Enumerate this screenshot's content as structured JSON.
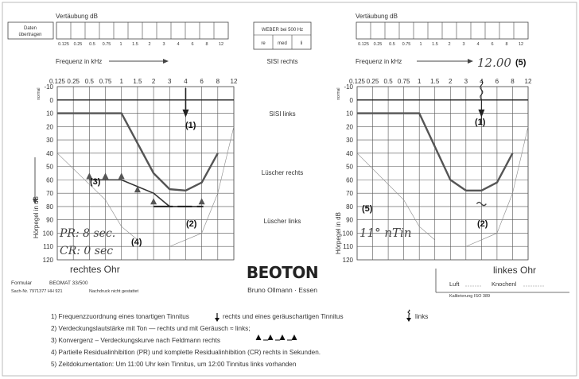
{
  "left": {
    "vertaeubung_label": "Vertäubung dB",
    "daten_btn": [
      "Daten",
      "übertragen"
    ],
    "mask_freqs": [
      "0.125",
      "0.25",
      "0.5",
      "0.75",
      "1",
      "1.5",
      "2",
      "3",
      "4",
      "6",
      "8",
      "12"
    ],
    "freq_label": "Frequenz in kHz",
    "freq_ticks": [
      "0.125",
      "0.25",
      "0.5",
      "0.75",
      "1",
      "1.5",
      "2",
      "3",
      "4",
      "6",
      "8",
      "12"
    ],
    "normal_label": "normal",
    "db_ticks": [
      "-10",
      "0",
      "10",
      "20",
      "30",
      "40",
      "50",
      "60",
      "70",
      "80",
      "90",
      "100",
      "110",
      "120"
    ],
    "y_axis_label": "Hörpegel in dB",
    "ear_label": "rechtes Ohr",
    "marker_1": "(1)",
    "marker_2": "(2)",
    "marker_3": "(3)",
    "marker_4": "(4)",
    "pr_text": "PR: 8 sec.",
    "cr_text": "CR: 0 sec",
    "formular_label": "Formular",
    "formular_value": "BEOMAT 33/500",
    "sach_nr": "Sach-Nr. 7971377 HH 921",
    "nachdruck": "Nachdruck nicht gestattet"
  },
  "middle": {
    "weber_title": "WEBER bei 500 Hz",
    "weber_cells": [
      "re",
      "med",
      "li"
    ],
    "sisi_rechts": "SISI rechts",
    "sisi_links": "SISI links",
    "luescher_rechts": "Lüscher rechts",
    "luescher_links": "Lüscher links",
    "col_khz": "kHz",
    "col_pct": "%",
    "col_db": "dB",
    "brand_logo": "BEOTON",
    "brand_text": "Bruno Ollmann · Essen"
  },
  "right": {
    "vertaeubung_label": "Vertäubung dB",
    "mask_freqs": [
      "0.125",
      "0.25",
      "0.5",
      "0.75",
      "1",
      "1.5",
      "2",
      "3",
      "4",
      "6",
      "8",
      "12"
    ],
    "freq_label": "Frequenz in kHz",
    "time_hand": "12.00",
    "marker_5_top": "(5)",
    "freq_ticks": [
      "0.125",
      "0.25",
      "0.5",
      "0.75",
      "1",
      "1.5",
      "2",
      "3",
      "4",
      "6",
      "8",
      "12"
    ],
    "normal_label": "normal",
    "db_ticks": [
      "-10",
      "0",
      "10",
      "20",
      "30",
      "40",
      "50",
      "60",
      "70",
      "80",
      "90",
      "100",
      "110",
      "120"
    ],
    "y_axis_label": "Hörpegel in dB",
    "marker_1": "(1)",
    "marker_2": "(2)",
    "marker_5": "(5)",
    "time_hand_2": "11° nTin",
    "ear_label": "linkes Ohr",
    "luft_label": "Luft",
    "knochen_label": "Knochenl",
    "kalibrierung": "Kalibrierung ISO 389"
  },
  "legend": {
    "line1a": "1) Frequenzzuordnung eines tonartigen Tinnitus",
    "line1b": "rechts und eines geräuschartigen Tinnitus",
    "line1c": "links",
    "line2": "2) Verdeckungslautstärke mit Ton — rechts und mit Geräusch ≈ links;",
    "line3": "3) Konvergenz – Verdeckungskurve nach Feldmann rechts",
    "line4": "4) Partielle Residualinhibition (PR) und komplette Residualinhibition (CR) rechts in Sekunden.",
    "line5": "5) Zeitdokumentation: Um 11:00 Uhr kein Tinnitus, um 12:00 Tinnitus links vorhanden"
  },
  "audiogram": {
    "freq_positions": [
      "0.125",
      "0.25",
      "0.5",
      "0.75",
      "1",
      "1.5",
      "2",
      "3",
      "4",
      "6",
      "8",
      "12"
    ],
    "db_range": [
      -10,
      120
    ],
    "right_ear_threshold": [
      {
        "f": "0.125",
        "db": 10
      },
      {
        "f": "1",
        "db": 10
      },
      {
        "f": "2",
        "db": 55
      },
      {
        "f": "3",
        "db": 67
      },
      {
        "f": "4",
        "db": 68
      },
      {
        "f": "6",
        "db": 62
      },
      {
        "f": "8",
        "db": 40
      }
    ],
    "right_ear_masking": [
      {
        "f": "0.5",
        "db": 60
      },
      {
        "f": "1",
        "db": 60
      },
      {
        "f": "2",
        "db": 70
      },
      {
        "f": "3",
        "db": 80
      },
      {
        "f": "6",
        "db": 80
      }
    ],
    "left_ear_threshold": [
      {
        "f": "0.125",
        "db": 10
      },
      {
        "f": "1",
        "db": 10
      },
      {
        "f": "2",
        "db": 60
      },
      {
        "f": "3",
        "db": 68
      },
      {
        "f": "4",
        "db": 68
      },
      {
        "f": "6",
        "db": 62
      },
      {
        "f": "8",
        "db": 40
      }
    ],
    "tinnitus_freq_khz": "4",
    "masking_level_right_db": 80,
    "masking_level_left_db": 78
  },
  "colors": {
    "grid": "#555555",
    "curve": "#555555",
    "ink": "#222222",
    "pencil": "#777777"
  }
}
